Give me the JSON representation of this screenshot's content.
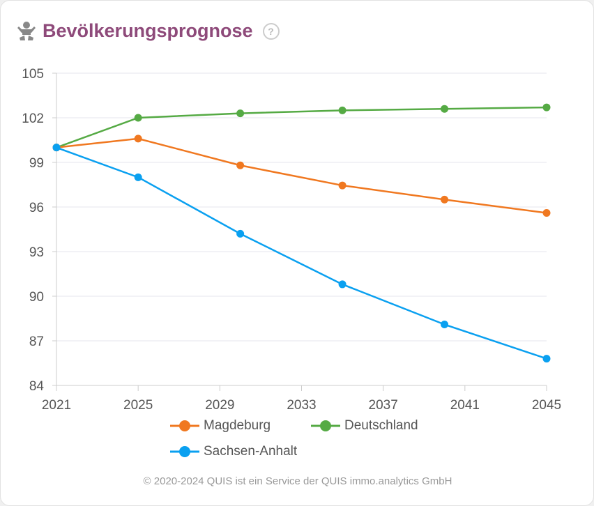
{
  "header": {
    "title": "Bevölkerungsprognose",
    "icon": "baby-icon",
    "help": "?"
  },
  "chart_data": {
    "type": "line",
    "title": "Bevölkerungsprognose",
    "xlabel": "",
    "ylabel": "",
    "x": [
      2021,
      2025,
      2030,
      2035,
      2040,
      2045
    ],
    "xlim": [
      2021,
      2045
    ],
    "ylim": [
      84,
      105
    ],
    "xticks": [
      "2021",
      "2025",
      "2029",
      "2033",
      "2037",
      "2041",
      "2045"
    ],
    "yticks": [
      "105",
      "102",
      "99",
      "96",
      "93",
      "90",
      "87",
      "84"
    ],
    "grid": true,
    "legend_position": "bottom",
    "series": [
      {
        "name": "Magdeburg",
        "color": "#f07820",
        "values": [
          100,
          100.6,
          98.8,
          97.45,
          96.5,
          95.6
        ]
      },
      {
        "name": "Deutschland",
        "color": "#55aa44",
        "values": [
          100,
          102.0,
          102.3,
          102.5,
          102.6,
          102.7
        ]
      },
      {
        "name": "Sachsen-Anhalt",
        "color": "#0aa0f0",
        "values": [
          100,
          98.0,
          94.2,
          90.8,
          88.1,
          85.8
        ]
      }
    ]
  },
  "footer": {
    "text": "© 2020-2024 QUIS ist ein Service der QUIS immo.analytics GmbH"
  }
}
